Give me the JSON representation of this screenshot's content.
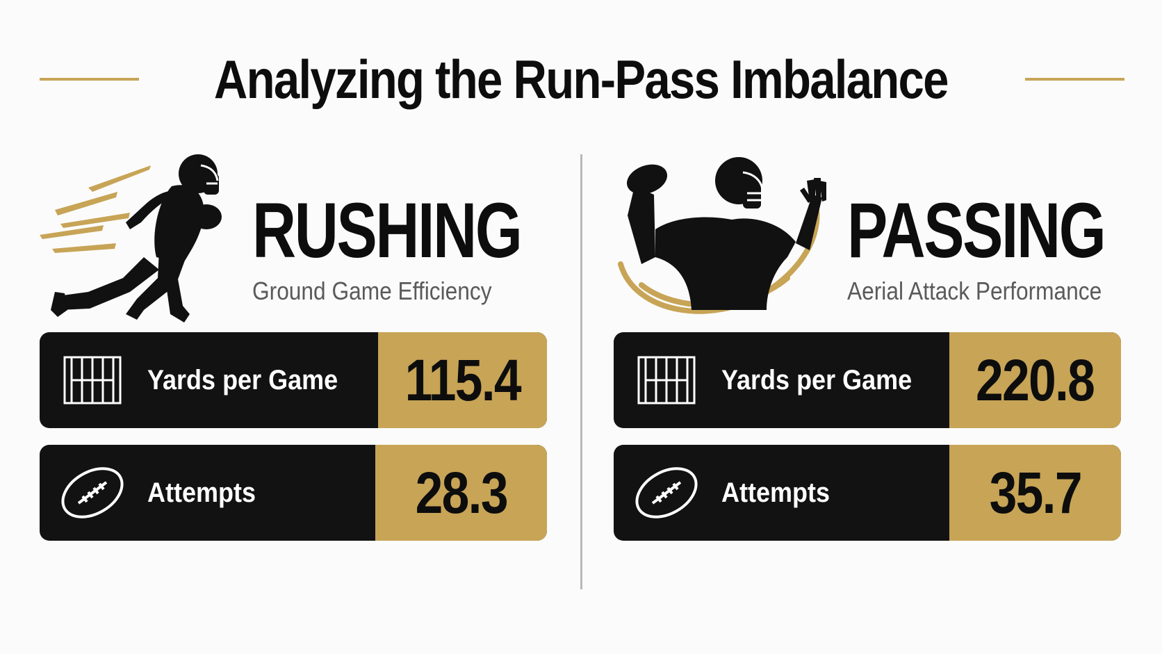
{
  "title": "Analyzing the Run-Pass Imbalance",
  "colors": {
    "accent": "#c7a456",
    "dark": "#121212",
    "text": "#0d0d0d",
    "muted": "#5a5a5a"
  },
  "rushing": {
    "heading": "RUSHING",
    "subheading": "Ground Game Efficiency",
    "hero_icon": "running-back-silhouette-icon",
    "stats": [
      {
        "icon": "field-yardage-icon",
        "label": "Yards per Game",
        "value": "115.4"
      },
      {
        "icon": "football-icon",
        "label": "Attempts",
        "value": "28.3"
      }
    ]
  },
  "passing": {
    "heading": "PASSING",
    "subheading": "Aerial Attack Performance",
    "hero_icon": "quarterback-throwing-silhouette-icon",
    "stats": [
      {
        "icon": "field-yardage-icon",
        "label": "Yards per Game",
        "value": "220.8"
      },
      {
        "icon": "football-icon",
        "label": "Attempts",
        "value": "35.7"
      }
    ]
  }
}
